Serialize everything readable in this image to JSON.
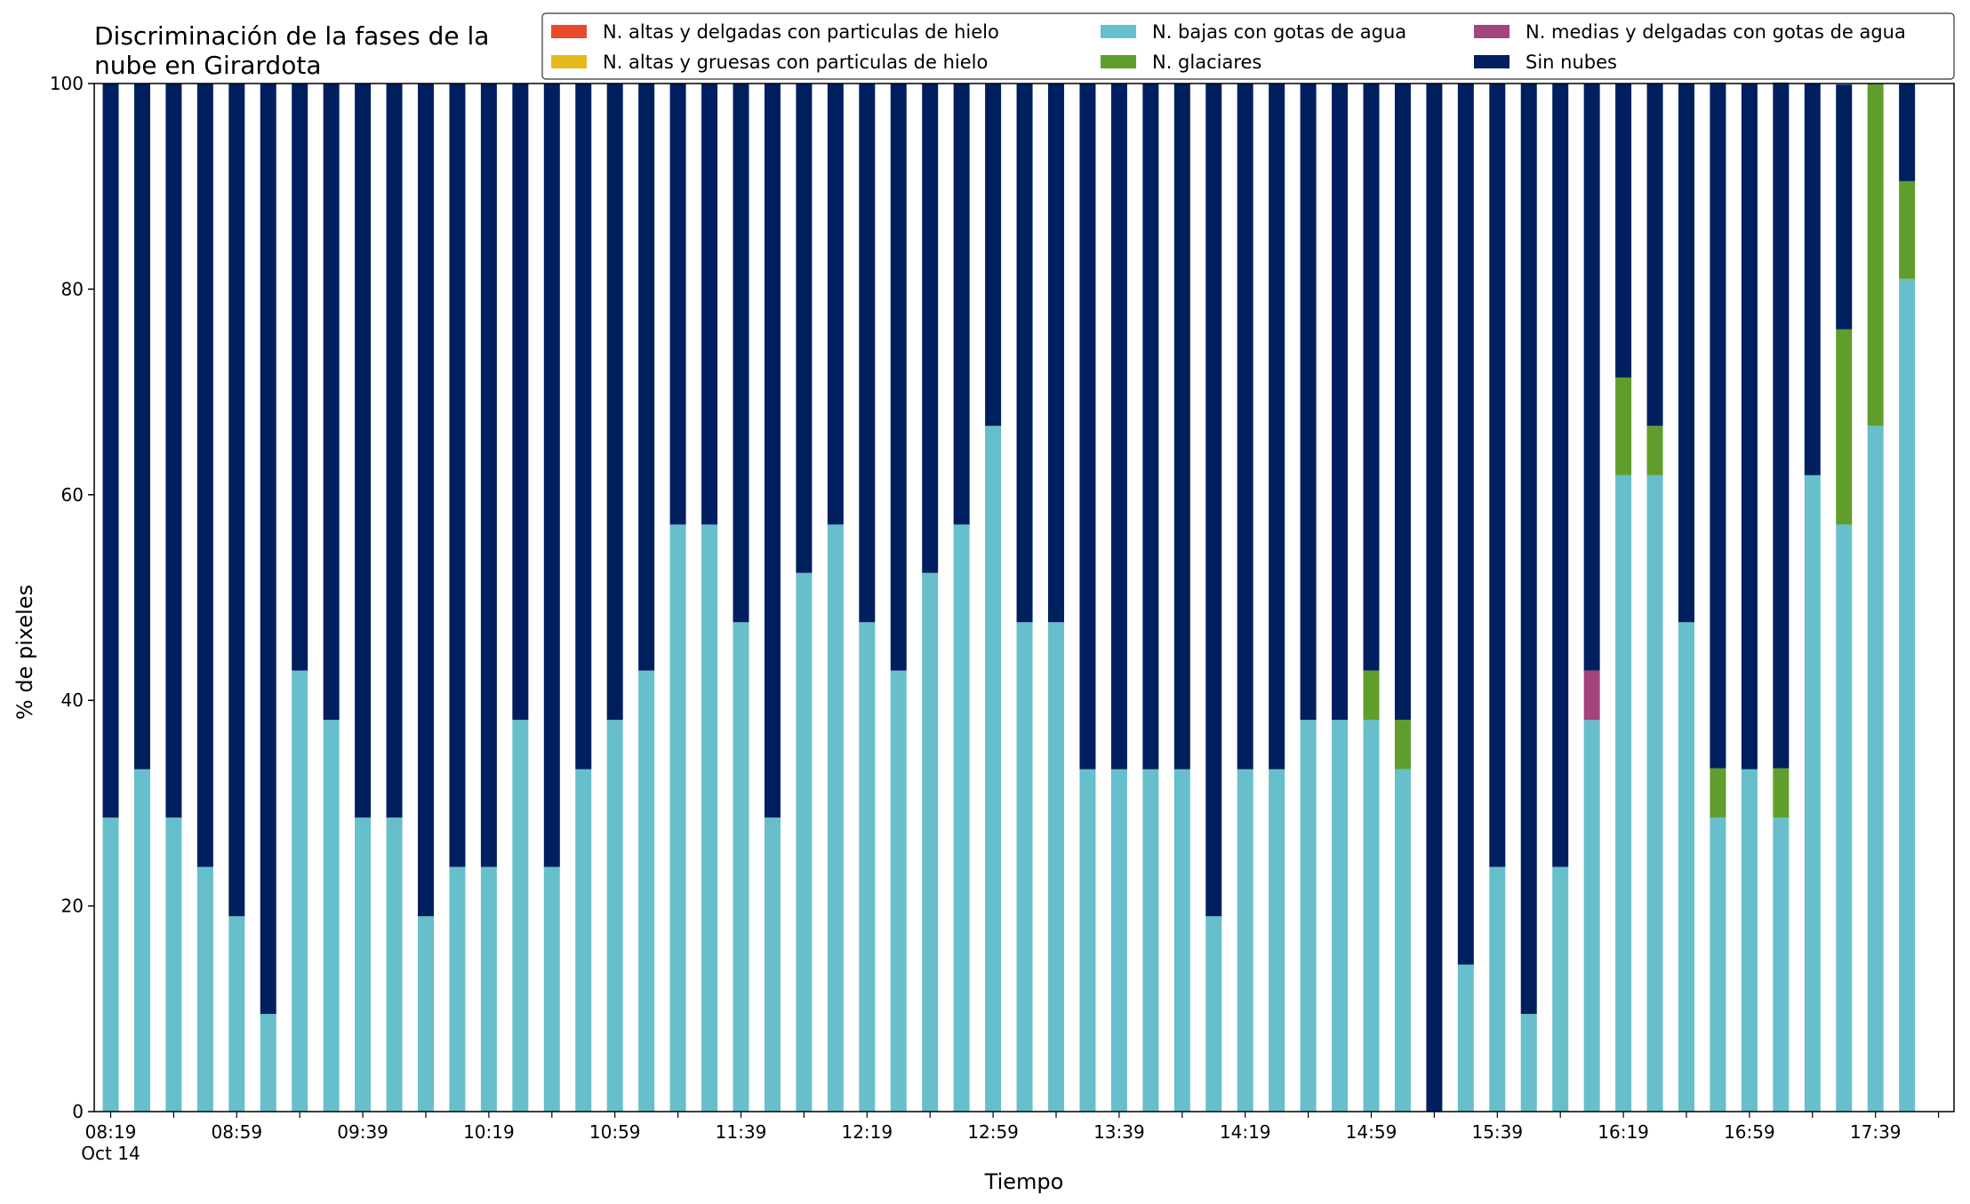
{
  "chart_data": {
    "type": "bar",
    "stacked": true,
    "title_line1": "Discriminación de la fases de la",
    "title_line2": "nube en Girardota",
    "xlabel": "Tiempo",
    "ylabel": "% de pixeles",
    "ylim": [
      0,
      100
    ],
    "yticks": [
      "0",
      "20",
      "40",
      "60",
      "80",
      "100"
    ],
    "x_tick_labels": [
      "08:19",
      "08:59",
      "09:39",
      "10:19",
      "10:59",
      "11:39",
      "12:19",
      "12:59",
      "13:39",
      "14:19",
      "14:59",
      "15:39",
      "16:19",
      "16:59",
      "17:39"
    ],
    "x_date_label": "Oct 14",
    "start_time": "08:19",
    "step_minutes": 10,
    "grid": false,
    "legend_position": "top",
    "series": [
      {
        "name": "N. altas y delgadas con particulas de hielo",
        "color": "#e84a2b",
        "values": [
          0,
          0,
          0,
          0,
          0,
          0,
          0,
          0,
          0,
          0,
          0,
          0,
          0,
          0,
          0,
          0,
          0,
          0,
          0,
          0,
          0,
          0,
          0,
          0,
          0,
          0,
          0,
          0,
          0,
          0,
          0,
          0,
          0,
          0,
          0,
          0,
          0,
          0,
          0,
          0,
          0,
          0,
          0,
          0,
          0,
          0,
          0,
          0,
          0,
          0,
          0,
          0,
          0,
          0,
          0,
          0,
          0,
          0
        ]
      },
      {
        "name": "N. altas y gruesas con particulas de hielo",
        "color": "#e5b91e",
        "values": [
          0,
          0,
          0,
          0,
          0,
          0,
          0,
          0,
          0,
          0,
          0,
          0,
          0,
          0,
          0,
          0,
          0,
          0,
          0,
          0,
          0,
          0,
          0,
          0,
          0,
          0,
          0,
          0,
          0,
          0,
          0,
          0,
          0,
          0,
          0,
          0,
          0,
          0,
          0,
          0,
          0,
          0,
          0,
          0,
          0,
          0,
          0,
          0,
          0,
          0,
          0,
          0,
          0,
          0,
          0,
          0,
          0,
          0
        ]
      },
      {
        "name": "N. bajas con gotas de agua",
        "color": "#67bfcb",
        "values": [
          28.6,
          33.3,
          28.6,
          23.8,
          19.0,
          9.5,
          42.9,
          38.1,
          28.6,
          28.6,
          19.0,
          23.8,
          23.8,
          38.1,
          23.8,
          33.3,
          38.1,
          42.9,
          57.1,
          57.1,
          47.6,
          28.6,
          52.4,
          57.1,
          47.6,
          42.9,
          52.4,
          57.1,
          66.7,
          47.6,
          47.6,
          33.3,
          33.3,
          33.3,
          33.3,
          19.0,
          33.3,
          33.3,
          38.1,
          38.1,
          38.1,
          33.3,
          0,
          14.3,
          23.8,
          9.5,
          23.8,
          38.1,
          61.9,
          61.9,
          47.6,
          28.6,
          33.3,
          28.6,
          61.9,
          57.1,
          66.7,
          81.0
        ]
      },
      {
        "name": "N. glaciares",
        "color": "#5f9e2c",
        "values": [
          0,
          0,
          0,
          0,
          0,
          0,
          0,
          0,
          0,
          0,
          0,
          0,
          0,
          0,
          0,
          0,
          0,
          0,
          0,
          0,
          0,
          0,
          0,
          0,
          0,
          0,
          0,
          0,
          0,
          0,
          0,
          0,
          0,
          0,
          0,
          0,
          0,
          0,
          0,
          0,
          4.8,
          4.8,
          0,
          0,
          0,
          0,
          0,
          0,
          9.5,
          4.8,
          0,
          4.8,
          0,
          4.8,
          0,
          19.0,
          33.3,
          9.5
        ]
      },
      {
        "name": "N. medias y delgadas con gotas de agua",
        "color": "#a3447a",
        "values": [
          0,
          0,
          0,
          0,
          0,
          0,
          0,
          0,
          0,
          0,
          0,
          0,
          0,
          0,
          0,
          0,
          0,
          0,
          0,
          0,
          0,
          0,
          0,
          0,
          0,
          0,
          0,
          0,
          0,
          0,
          0,
          0,
          0,
          0,
          0,
          0,
          0,
          0,
          0,
          0,
          0,
          0,
          0,
          0,
          0,
          0,
          0,
          4.8,
          0,
          0,
          0,
          0,
          0,
          0,
          0,
          0,
          0,
          0
        ]
      },
      {
        "name": "Sin nubes",
        "color": "#001f5f",
        "values": [
          71.4,
          66.7,
          71.4,
          76.2,
          81.0,
          90.5,
          57.1,
          61.9,
          71.4,
          71.4,
          81.0,
          76.2,
          76.2,
          61.9,
          76.2,
          66.7,
          61.9,
          57.1,
          42.9,
          42.9,
          52.4,
          71.4,
          47.6,
          42.9,
          52.4,
          57.1,
          47.6,
          42.9,
          33.3,
          52.4,
          52.4,
          66.7,
          66.7,
          66.7,
          66.7,
          81.0,
          66.7,
          66.7,
          61.9,
          61.9,
          57.1,
          61.9,
          100,
          85.7,
          76.2,
          90.5,
          76.2,
          57.1,
          28.6,
          33.3,
          52.4,
          66.7,
          66.7,
          66.7,
          38.1,
          23.8,
          0,
          9.5
        ]
      }
    ],
    "legend_order": [
      0,
      1,
      2,
      3,
      4,
      5
    ]
  }
}
